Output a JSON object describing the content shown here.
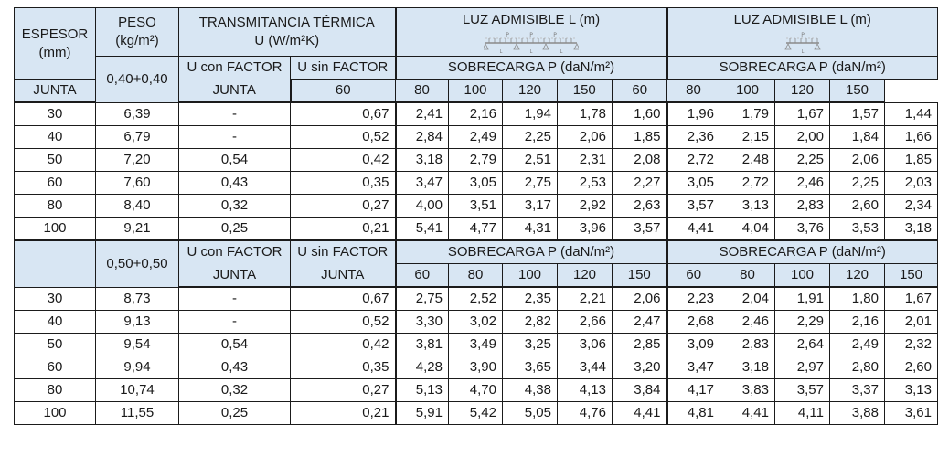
{
  "header": {
    "espesor_line1": "ESPESOR",
    "espesor_line2": "(mm)",
    "peso_line1": "PESO",
    "peso_line2": "(kg/m²)",
    "transm_line1": "TRANSMITANCIA TÉRMICA",
    "transm_line2": "U (W/m²K)",
    "luz1": "LUZ ADMISIBLE L (m)",
    "luz2": "LUZ ADMISIBLE L (m)",
    "beam1_p": "P",
    "beam1_l": "L",
    "beam2_p": "P",
    "beam2_l": "L",
    "u_con_line1": "U con FACTOR",
    "u_con_line2": "JUNTA",
    "u_sin_line1": "U sin FACTOR",
    "u_sin_line2": "JUNTA",
    "sobrecarga": "SOBRECARGA P (daN/m²)",
    "loads": [
      "60",
      "80",
      "100",
      "120",
      "150"
    ]
  },
  "sections": [
    {
      "weight_label": "0,40+0,40",
      "rows": [
        {
          "espesor": "30",
          "peso": "6,39",
          "u_con": "-",
          "u_sin": "0,67",
          "luz1": [
            "2,41",
            "2,16",
            "1,94",
            "1,78",
            "1,60"
          ],
          "luz2": [
            "1,96",
            "1,79",
            "1,67",
            "1,57",
            "1,44"
          ]
        },
        {
          "espesor": "40",
          "peso": "6,79",
          "u_con": "-",
          "u_sin": "0,52",
          "luz1": [
            "2,84",
            "2,49",
            "2,25",
            "2,06",
            "1,85"
          ],
          "luz2": [
            "2,36",
            "2,15",
            "2,00",
            "1,84",
            "1,66"
          ]
        },
        {
          "espesor": "50",
          "peso": "7,20",
          "u_con": "0,54",
          "u_sin": "0,42",
          "luz1": [
            "3,18",
            "2,79",
            "2,51",
            "2,31",
            "2,08"
          ],
          "luz2": [
            "2,72",
            "2,48",
            "2,25",
            "2,06",
            "1,85"
          ]
        },
        {
          "espesor": "60",
          "peso": "7,60",
          "u_con": "0,43",
          "u_sin": "0,35",
          "luz1": [
            "3,47",
            "3,05",
            "2,75",
            "2,53",
            "2,27"
          ],
          "luz2": [
            "3,05",
            "2,72",
            "2,46",
            "2,25",
            "2,03"
          ]
        },
        {
          "espesor": "80",
          "peso": "8,40",
          "u_con": "0,32",
          "u_sin": "0,27",
          "luz1": [
            "4,00",
            "3,51",
            "3,17",
            "2,92",
            "2,63"
          ],
          "luz2": [
            "3,57",
            "3,13",
            "2,83",
            "2,60",
            "2,34"
          ]
        },
        {
          "espesor": "100",
          "peso": "9,21",
          "u_con": "0,25",
          "u_sin": "0,21",
          "luz1": [
            "5,41",
            "4,77",
            "4,31",
            "3,96",
            "3,57"
          ],
          "luz2": [
            "4,41",
            "4,04",
            "3,76",
            "3,53",
            "3,18"
          ]
        }
      ]
    },
    {
      "weight_label": "0,50+0,50",
      "rows": [
        {
          "espesor": "30",
          "peso": "8,73",
          "u_con": "-",
          "u_sin": "0,67",
          "luz1": [
            "2,75",
            "2,52",
            "2,35",
            "2,21",
            "2,06"
          ],
          "luz2": [
            "2,23",
            "2,04",
            "1,91",
            "1,80",
            "1,67"
          ]
        },
        {
          "espesor": "40",
          "peso": "9,13",
          "u_con": "-",
          "u_sin": "0,52",
          "luz1": [
            "3,30",
            "3,02",
            "2,82",
            "2,66",
            "2,47"
          ],
          "luz2": [
            "2,68",
            "2,46",
            "2,29",
            "2,16",
            "2,01"
          ]
        },
        {
          "espesor": "50",
          "peso": "9,54",
          "u_con": "0,54",
          "u_sin": "0,42",
          "luz1": [
            "3,81",
            "3,49",
            "3,25",
            "3,06",
            "2,85"
          ],
          "luz2": [
            "3,09",
            "2,83",
            "2,64",
            "2,49",
            "2,32"
          ]
        },
        {
          "espesor": "60",
          "peso": "9,94",
          "u_con": "0,43",
          "u_sin": "0,35",
          "luz1": [
            "4,28",
            "3,90",
            "3,65",
            "3,44",
            "3,20"
          ],
          "luz2": [
            "3,47",
            "3,18",
            "2,97",
            "2,80",
            "2,60"
          ]
        },
        {
          "espesor": "80",
          "peso": "10,74",
          "u_con": "0,32",
          "u_sin": "0,27",
          "luz1": [
            "5,13",
            "4,70",
            "4,38",
            "4,13",
            "3,84"
          ],
          "luz2": [
            "4,17",
            "3,83",
            "3,57",
            "3,37",
            "3,13"
          ]
        },
        {
          "espesor": "100",
          "peso": "11,55",
          "u_con": "0,25",
          "u_sin": "0,21",
          "luz1": [
            "5,91",
            "5,42",
            "5,05",
            "4,76",
            "4,41"
          ],
          "luz2": [
            "4,81",
            "4,41",
            "4,11",
            "3,88",
            "3,61"
          ]
        }
      ]
    }
  ],
  "colors": {
    "header_bg": "#d8e6f3",
    "border": "#1b1b1b",
    "text": "#1a1a1a"
  }
}
